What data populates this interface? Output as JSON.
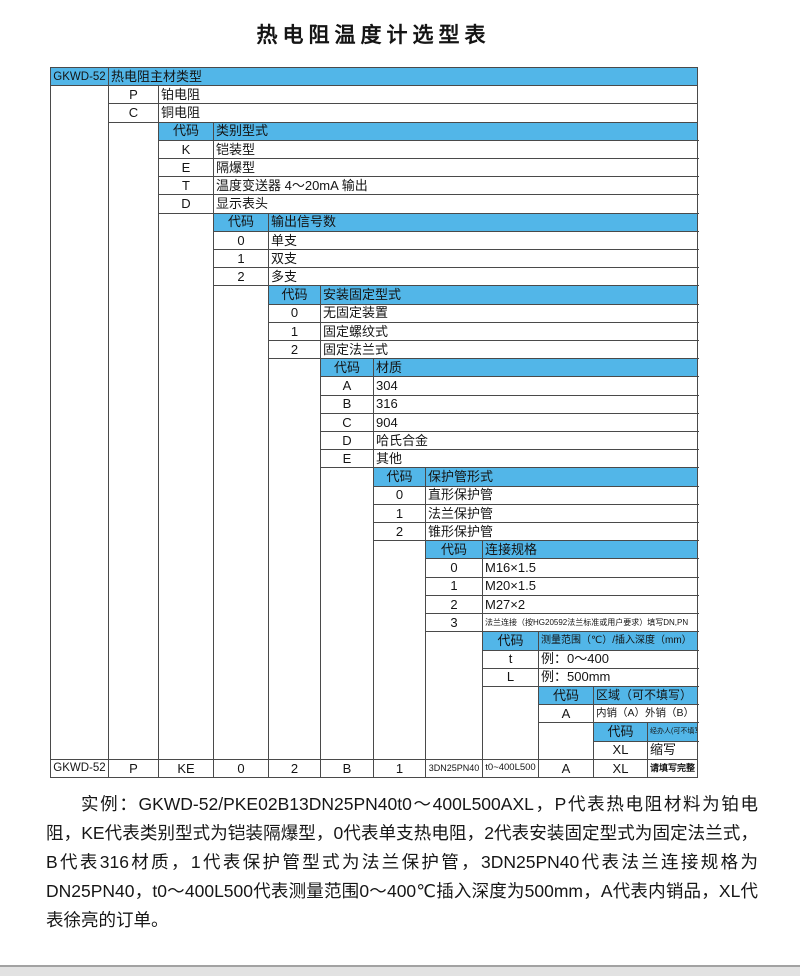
{
  "title": "热电阻温度计选型表",
  "colors": {
    "header_blue": "#52b6e8",
    "table_border": "#4a4a4a",
    "bottom_bar": "#e2e2e2"
  },
  "table": {
    "model_label": "GKWD-52",
    "code_label": "代码",
    "steps": [
      {
        "title": "热电阻主材类型",
        "options": [
          {
            "code": "P",
            "desc": "铂电阻"
          },
          {
            "code": "C",
            "desc": "铜电阻"
          }
        ]
      },
      {
        "title": "类别型式",
        "options": [
          {
            "code": "K",
            "desc": "铠装型"
          },
          {
            "code": "E",
            "desc": "隔爆型"
          },
          {
            "code": "T",
            "desc": "温度变送器 4～20mA 输出"
          },
          {
            "code": "D",
            "desc": "显示表头"
          }
        ]
      },
      {
        "title": "输出信号数",
        "options": [
          {
            "code": "0",
            "desc": "单支"
          },
          {
            "code": "1",
            "desc": "双支"
          },
          {
            "code": "2",
            "desc": "多支"
          }
        ]
      },
      {
        "title": "安装固定型式",
        "options": [
          {
            "code": "0",
            "desc": "无固定装置"
          },
          {
            "code": "1",
            "desc": "固定螺纹式"
          },
          {
            "code": "2",
            "desc": "固定法兰式"
          }
        ]
      },
      {
        "title": "材质",
        "options": [
          {
            "code": "A",
            "desc": "304"
          },
          {
            "code": "B",
            "desc": "316"
          },
          {
            "code": "C",
            "desc": "904"
          },
          {
            "code": "D",
            "desc": "哈氏合金"
          },
          {
            "code": "E",
            "desc": "其他"
          }
        ]
      },
      {
        "title": "保护管形式",
        "options": [
          {
            "code": "0",
            "desc": "直形保护管"
          },
          {
            "code": "1",
            "desc": "法兰保护管"
          },
          {
            "code": "2",
            "desc": "锥形保护管"
          }
        ]
      },
      {
        "title": "连接规格",
        "options": [
          {
            "code": "0",
            "desc": "M16×1.5"
          },
          {
            "code": "1",
            "desc": "M20×1.5"
          },
          {
            "code": "2",
            "desc": "M27×2"
          },
          {
            "code": "3",
            "desc": "法兰连接（按HG20592法兰标准或用户要求）填写DN,PN"
          }
        ]
      },
      {
        "title": "测量范围（℃）/插入深度（mm）",
        "options": [
          {
            "code": "t",
            "desc": "例：0～400"
          },
          {
            "code": "L",
            "desc": "例：500mm"
          }
        ]
      },
      {
        "title": "区域（可不填写）",
        "options": [
          {
            "code": "A",
            "desc": "内销（A）外销（B）"
          }
        ]
      },
      {
        "title": "经办人(可不填写)",
        "options": [
          {
            "code": "XL",
            "desc": "缩写"
          }
        ]
      }
    ],
    "summary": [
      "GKWD-52",
      "P",
      "KE",
      "0",
      "2",
      "B",
      "1",
      "3DN25PN40",
      "t0~400L500",
      "A",
      "XL",
      "请填写完整"
    ]
  },
  "example": {
    "text": "实例：GKWD-52/PKE02B13DN25PN40t0～400L500AXL，P代表热电阻材料为铂电阻，KE代表类别型式为铠装隔爆型，0代表单支热电阻，2代表安装固定型式为固定法兰式，B代表316材质，1代表保护管型式为法兰保护管，3DN25PN40代表法兰连接规格为DN25PN40，t0～400L500代表测量范围0～400℃插入深度为500mm，A代表内销品，XL代表徐亮的订单。"
  }
}
